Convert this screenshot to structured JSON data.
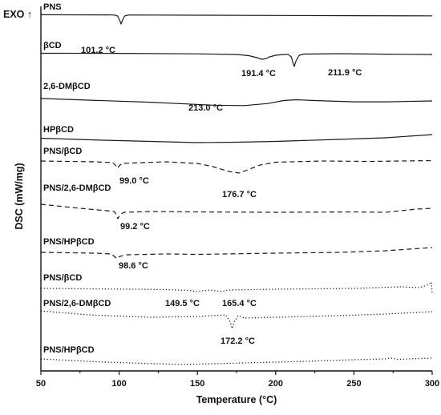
{
  "chart_data": {
    "type": "line",
    "xlabel": "Temperature (°C)",
    "ylabel": "DSC (mW/mg)",
    "exo_label": "EXO ↑",
    "xlim": [
      50,
      300
    ],
    "xticks": [
      {
        "value": 50,
        "label": "50"
      },
      {
        "value": 100,
        "label": "100"
      },
      {
        "value": 150,
        "label": "150"
      },
      {
        "value": 200,
        "label": "200"
      },
      {
        "value": 250,
        "label": "250"
      },
      {
        "value": 300,
        "label": "300"
      }
    ],
    "grid": false,
    "series": [
      {
        "name": "PNS",
        "style": "solid",
        "points": [
          [
            50,
            0.4
          ],
          [
            90,
            0.6
          ],
          [
            97,
            0.7
          ],
          [
            99,
            2
          ],
          [
            100.5,
            8
          ],
          [
            101.2,
            12
          ],
          [
            102,
            8
          ],
          [
            103.5,
            2
          ],
          [
            106,
            0.7
          ],
          [
            150,
            1
          ],
          [
            200,
            1.3
          ],
          [
            250,
            1.6
          ],
          [
            300,
            1.8
          ]
        ],
        "peaks": [
          {
            "x": 101.2,
            "label": "101.2 °C"
          }
        ]
      },
      {
        "name": "βCD",
        "style": "solid",
        "points": [
          [
            50,
            0.5
          ],
          [
            100,
            0.6
          ],
          [
            150,
            1.2
          ],
          [
            175,
            2
          ],
          [
            183,
            3.5
          ],
          [
            188,
            6
          ],
          [
            191.4,
            8
          ],
          [
            194,
            7
          ],
          [
            196,
            5
          ],
          [
            200,
            3
          ],
          [
            205,
            2
          ],
          [
            208,
            1.8
          ],
          [
            210,
            5
          ],
          [
            211,
            12
          ],
          [
            211.9,
            17
          ],
          [
            213,
            10
          ],
          [
            215,
            3
          ],
          [
            218,
            1.5
          ],
          [
            240,
            1
          ],
          [
            270,
            1.6
          ],
          [
            300,
            2
          ]
        ],
        "peaks": [
          {
            "x": 191.4,
            "label": "191.4 °C"
          },
          {
            "x": 211.9,
            "label": "211.9 °C"
          }
        ]
      },
      {
        "name": "2,6-DMβCD",
        "style": "solid",
        "points": [
          [
            50,
            -2
          ],
          [
            80,
            0
          ],
          [
            120,
            2.5
          ],
          [
            160,
            6
          ],
          [
            180,
            6.5
          ],
          [
            195,
            4
          ],
          [
            205,
            0.5
          ],
          [
            213,
            -0.5
          ],
          [
            225,
            0.5
          ],
          [
            250,
            2
          ],
          [
            270,
            2
          ],
          [
            300,
            1
          ]
        ],
        "peaks": [
          {
            "x": 213.0,
            "label": "213.0 °C"
          }
        ]
      },
      {
        "name": "HPβCD",
        "style": "solid",
        "points": [
          [
            50,
            -2.5
          ],
          [
            90,
            0
          ],
          [
            130,
            2
          ],
          [
            150,
            3
          ],
          [
            175,
            2.5
          ],
          [
            200,
            1.5
          ],
          [
            240,
            -1
          ],
          [
            270,
            -3
          ],
          [
            300,
            -7
          ]
        ],
        "peaks": []
      },
      {
        "name": "PNS/βCD",
        "style": "dashed",
        "points": [
          [
            50,
            -1
          ],
          [
            85,
            0
          ],
          [
            96,
            1
          ],
          [
            98,
            5
          ],
          [
            99,
            8
          ],
          [
            100,
            5
          ],
          [
            102,
            2
          ],
          [
            115,
            1
          ],
          [
            130,
            0
          ],
          [
            150,
            2
          ],
          [
            160,
            6
          ],
          [
            170,
            12
          ],
          [
            176.7,
            14
          ],
          [
            182,
            10
          ],
          [
            190,
            4
          ],
          [
            200,
            0.5
          ],
          [
            230,
            -1
          ],
          [
            260,
            -0.5
          ],
          [
            300,
            -1.5
          ]
        ],
        "peaks": [
          {
            "x": 99.0,
            "label": "99.0 °C"
          },
          {
            "x": 176.7,
            "label": "176.7 °C"
          }
        ]
      },
      {
        "name": "PNS/2,6-DMβCD",
        "style": "dashed",
        "points": [
          [
            50,
            -7
          ],
          [
            75,
            -2
          ],
          [
            92,
            1
          ],
          [
            97,
            2
          ],
          [
            98.5,
            7
          ],
          [
            99.2,
            11
          ],
          [
            100.5,
            6
          ],
          [
            103,
            3
          ],
          [
            120,
            2
          ],
          [
            150,
            2.5
          ],
          [
            200,
            3
          ],
          [
            250,
            2.5
          ],
          [
            270,
            3
          ],
          [
            290,
            -1
          ],
          [
            300,
            -2
          ]
        ],
        "peaks": [
          {
            "x": 99.2,
            "label": "99.2 °C"
          }
        ]
      },
      {
        "name": "PNS/HPβCD",
        "style": "dashed",
        "points": [
          [
            50,
            -1
          ],
          [
            85,
            0
          ],
          [
            95,
            1
          ],
          [
            97.5,
            5
          ],
          [
            98.6,
            7
          ],
          [
            100.5,
            4
          ],
          [
            105,
            2
          ],
          [
            130,
            1
          ],
          [
            150,
            1.5
          ],
          [
            200,
            0
          ],
          [
            240,
            -1
          ],
          [
            270,
            -3
          ],
          [
            300,
            -7
          ]
        ],
        "peaks": [
          {
            "x": 98.6,
            "label": "98.6 °C"
          }
        ]
      },
      {
        "name": "PNS/βCD",
        "style": "dotted",
        "points": [
          [
            50,
            -1
          ],
          [
            80,
            -0.5
          ],
          [
            110,
            0
          ],
          [
            130,
            0.5
          ],
          [
            145,
            1.5
          ],
          [
            149.5,
            3
          ],
          [
            153,
            2
          ],
          [
            158,
            1
          ],
          [
            162,
            2
          ],
          [
            165.4,
            3
          ],
          [
            170,
            1
          ],
          [
            200,
            0
          ],
          [
            250,
            -1
          ],
          [
            280,
            -3
          ],
          [
            292,
            -2
          ],
          [
            298,
            -6
          ],
          [
            299.5,
            -9
          ],
          [
            300,
            4
          ]
        ],
        "peaks": [
          {
            "x": 149.5,
            "label": "149.5 °C"
          },
          {
            "x": 165.4,
            "label": "165.4 °C"
          }
        ]
      },
      {
        "name": "PNS/2,6-DMβCD",
        "style": "dotted",
        "points": [
          [
            50,
            -4
          ],
          [
            80,
            1
          ],
          [
            120,
            4
          ],
          [
            150,
            3
          ],
          [
            168,
            1
          ],
          [
            171,
            10
          ],
          [
            172.2,
            18
          ],
          [
            173.5,
            10
          ],
          [
            176,
            2
          ],
          [
            180,
            5
          ],
          [
            200,
            4
          ],
          [
            240,
            2
          ],
          [
            270,
            0
          ],
          [
            300,
            -3
          ]
        ],
        "peaks": [
          {
            "x": 172.2,
            "label": "172.2 °C"
          }
        ]
      },
      {
        "name": "PNS/HPβCD",
        "style": "dotted",
        "points": [
          [
            50,
            -2
          ],
          [
            90,
            2
          ],
          [
            140,
            5
          ],
          [
            180,
            3
          ],
          [
            220,
            1
          ],
          [
            250,
            -1
          ],
          [
            270,
            -2
          ],
          [
            274,
            -3
          ],
          [
            278,
            -1.5
          ],
          [
            300,
            -3
          ]
        ],
        "peaks": []
      }
    ]
  }
}
